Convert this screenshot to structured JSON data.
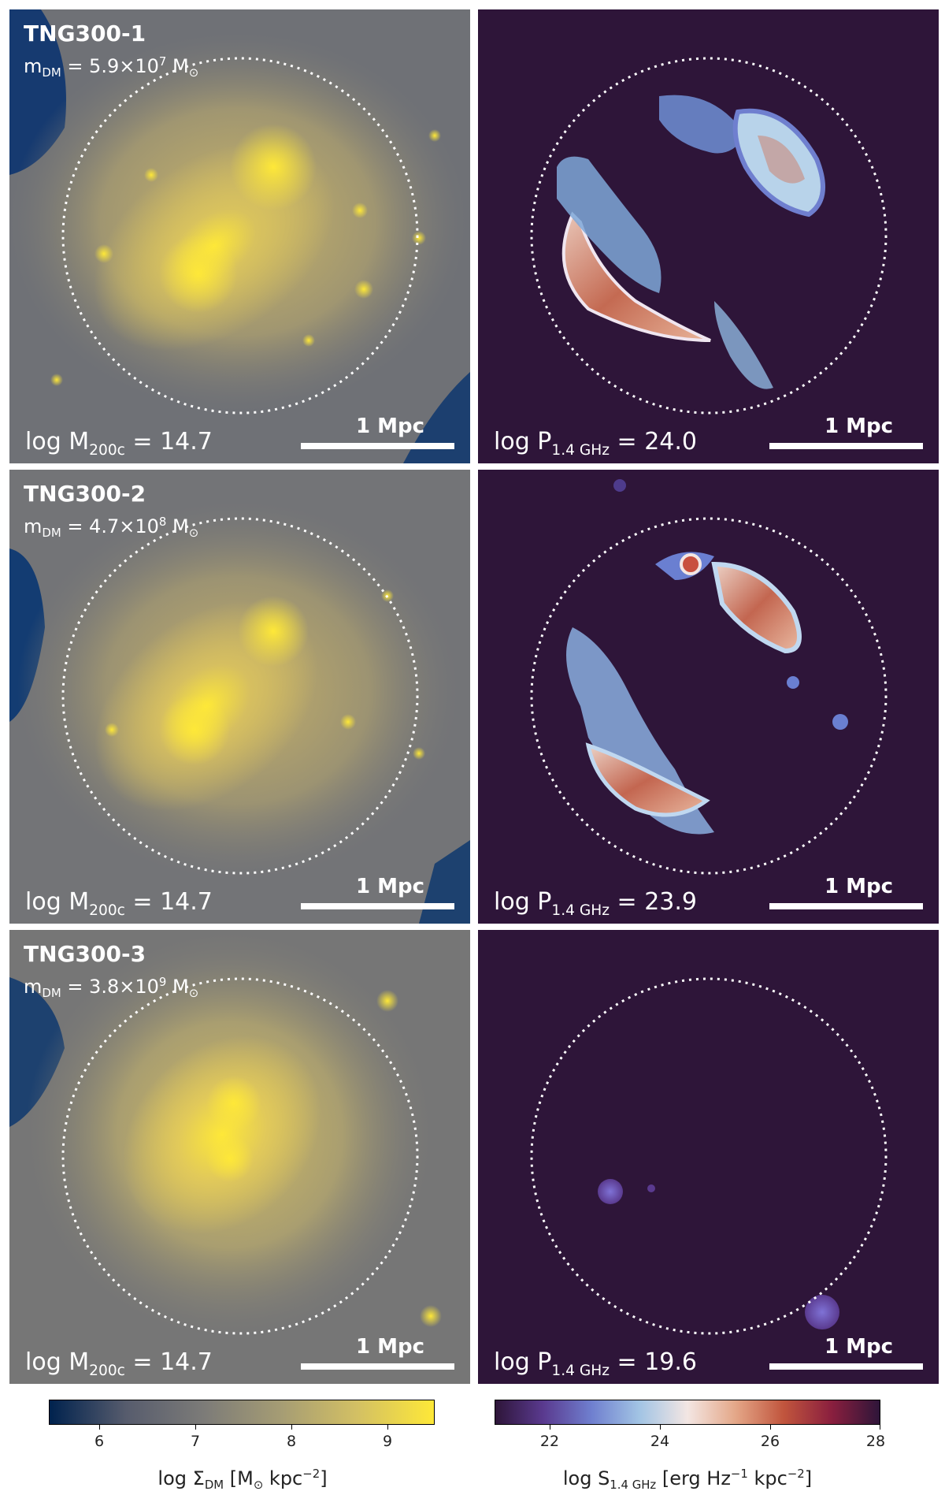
{
  "rows": [
    {
      "sim": "TNG300-1",
      "mdm_prefix": "m",
      "mdm_sub": "DM",
      "mdm_value": " = 5.9×10",
      "mdm_exp": "7",
      "mdm_unit": " M",
      "mdm_unit_sub": "⊙",
      "mass_prefix": "log M",
      "mass_sub": "200c",
      "mass_value": " = 14.7",
      "power_prefix": "log P",
      "power_sub": "1.4 GHz",
      "power_value": " = 24.0",
      "scale_left": "1 Mpc",
      "scale_right": "1 Mpc"
    },
    {
      "sim": "TNG300-2",
      "mdm_prefix": "m",
      "mdm_sub": "DM",
      "mdm_value": " = 4.7×10",
      "mdm_exp": "8",
      "mdm_unit": " M",
      "mdm_unit_sub": "⊙",
      "mass_prefix": "log M",
      "mass_sub": "200c",
      "mass_value": " = 14.7",
      "power_prefix": "log P",
      "power_sub": "1.4 GHz",
      "power_value": " = 23.9",
      "scale_left": "1 Mpc",
      "scale_right": "1 Mpc"
    },
    {
      "sim": "TNG300-3",
      "mdm_prefix": "m",
      "mdm_sub": "DM",
      "mdm_value": " = 3.8×10",
      "mdm_exp": "9",
      "mdm_unit": " M",
      "mdm_unit_sub": "⊙",
      "mass_prefix": "log M",
      "mass_sub": "200c",
      "mass_value": " = 14.7",
      "power_prefix": "log P",
      "power_sub": "1.4 GHz",
      "power_value": " = 19.6",
      "scale_left": "1 Mpc",
      "scale_right": "1 Mpc"
    }
  ],
  "colorbar_dm": {
    "ticks": [
      "6",
      "7",
      "8",
      "9"
    ],
    "label_prefix": "log Σ",
    "label_sub": "DM",
    "label_mid": " [M",
    "label_sun": "⊙",
    "label_unit": " kpc",
    "label_exp": "−2",
    "label_end": "]",
    "colors": [
      "#00224e",
      "#575c6d",
      "#7c7b78",
      "#a59c74",
      "#d3c064",
      "#fee838"
    ]
  },
  "colorbar_radio": {
    "ticks": [
      "22",
      "24",
      "26",
      "28"
    ],
    "label_prefix": "log S",
    "label_sub": "1.4 GHz",
    "label_mid": " [erg Hz",
    "label_exp1": "−1",
    "label_unit": " kpc",
    "label_exp2": "−2",
    "label_end": "]",
    "colors": [
      "#2e1539",
      "#5a3a8f",
      "#6f7fcf",
      "#a2c4e4",
      "#f3e6e3",
      "#e4a788",
      "#c1553d",
      "#8a1f3e",
      "#2e1539"
    ]
  }
}
